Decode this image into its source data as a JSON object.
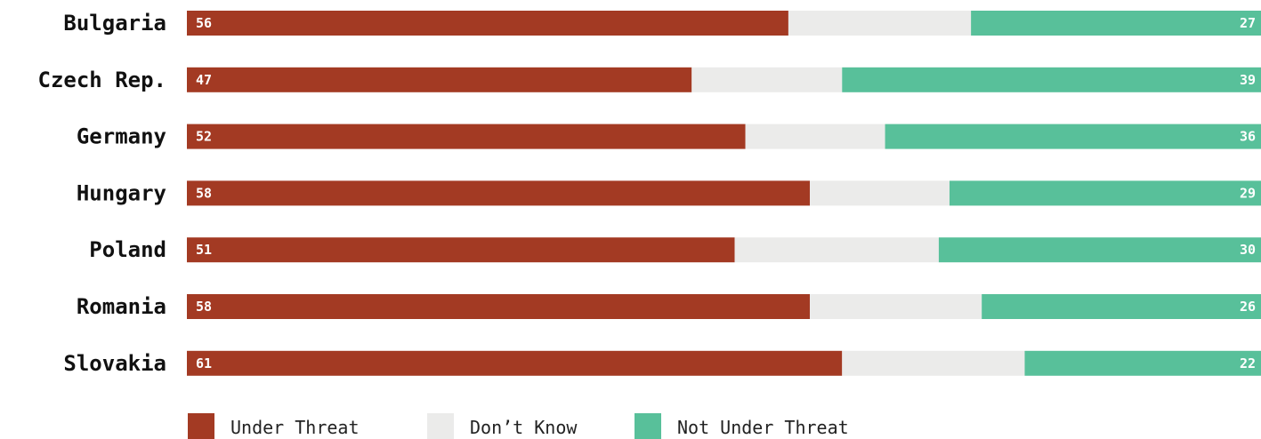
{
  "chart_data": {
    "type": "bar",
    "orientation": "horizontal",
    "stacked": true,
    "categories": [
      "Bulgaria",
      "Czech Rep.",
      "Germany",
      "Hungary",
      "Poland",
      "Romania",
      "Slovakia"
    ],
    "series": [
      {
        "name": "Under Threat",
        "values": [
          56,
          47,
          52,
          58,
          51,
          58,
          61
        ],
        "color": "#a33a23"
      },
      {
        "name": "Don’t Know",
        "values": [
          17,
          14,
          13,
          13,
          19,
          16,
          17
        ],
        "color": "#ebebea"
      },
      {
        "name": "Not Under Threat",
        "values": [
          27,
          39,
          36,
          29,
          30,
          26,
          22
        ],
        "color": "#58c09a"
      }
    ],
    "data_labels": {
      "Under Threat": [
        "56",
        "47",
        "52",
        "58",
        "51",
        "58",
        "61"
      ],
      "Not Under Threat": [
        "27",
        "39",
        "36",
        "29",
        "30",
        "26",
        "22"
      ]
    },
    "xlim": [
      0,
      100
    ],
    "title": "",
    "xlabel": "",
    "ylabel": "",
    "grid": false,
    "legend": "bottom"
  }
}
